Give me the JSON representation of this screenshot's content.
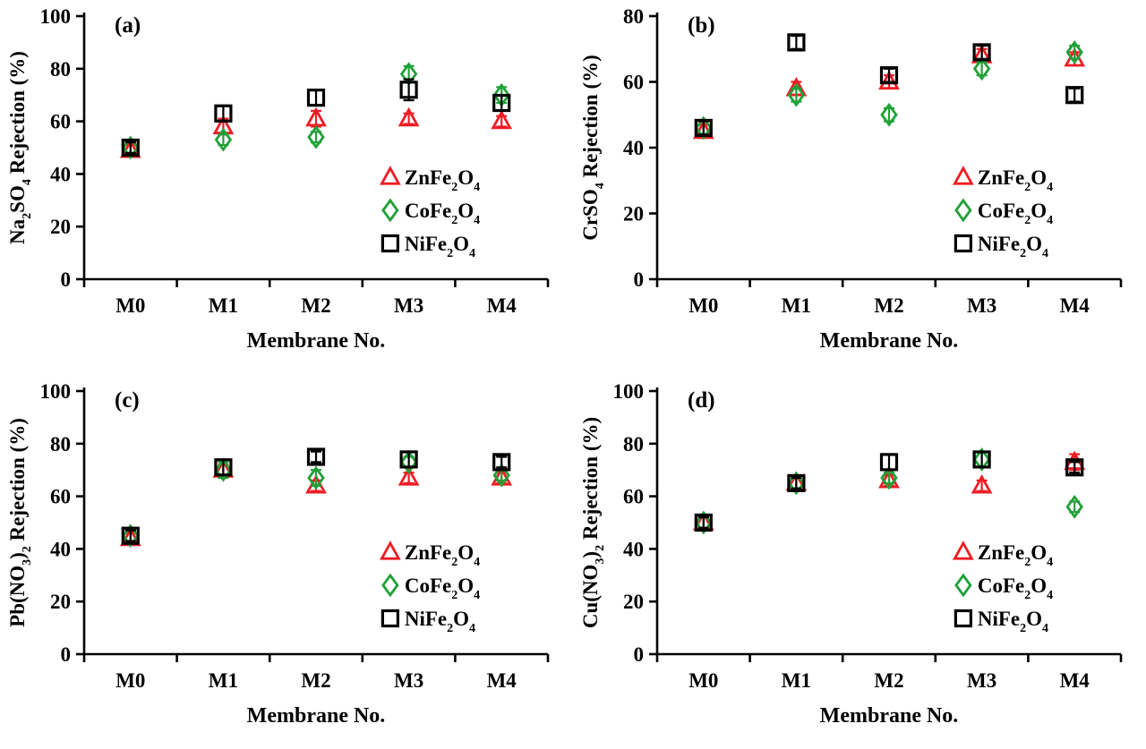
{
  "figure": {
    "background": "#ffffff",
    "axis_color": "#000000",
    "legend": {
      "position": "lower right inside",
      "items": [
        {
          "name": "ZnFe2O4",
          "text": "ZnFe2O4",
          "parts": [
            [
              "ZnFe",
              0
            ],
            [
              "2",
              1
            ],
            [
              "O",
              0
            ],
            [
              "4",
              1
            ]
          ],
          "marker": "triangle",
          "color": "#ed1c24"
        },
        {
          "name": "CoFe2O4",
          "text": "CoFe2O4",
          "parts": [
            [
              "CoFe",
              0
            ],
            [
              "2",
              1
            ],
            [
              "O",
              0
            ],
            [
              "4",
              1
            ]
          ],
          "marker": "diamond",
          "color": "#21a038"
        },
        {
          "name": "NiFe2O4",
          "text": "NiFe2O4",
          "parts": [
            [
              "NiFe",
              0
            ],
            [
              "2",
              1
            ],
            [
              "O",
              0
            ],
            [
              "4",
              1
            ]
          ],
          "marker": "square",
          "color": "#000000"
        }
      ]
    }
  },
  "chart_data": [
    {
      "type": "scatter",
      "panel_label": "(a)",
      "xlabel": "Membrane No.",
      "ylabel": "Na2SO4 Rejection (%)",
      "ylabel_parts": [
        [
          "Na",
          0
        ],
        [
          "2",
          1
        ],
        [
          "SO",
          0
        ],
        [
          "4",
          1
        ],
        [
          " Rejection (%)",
          0
        ]
      ],
      "categories": [
        "M0",
        "M1",
        "M2",
        "M3",
        "M4"
      ],
      "ylim": [
        0,
        100
      ],
      "yticks": [
        0,
        20,
        40,
        60,
        80,
        100
      ],
      "grid": false,
      "series": [
        {
          "name": "ZnFe2O4",
          "marker": "triangle",
          "color": "#ed1c24",
          "values": [
            49,
            58,
            61,
            61,
            60
          ],
          "errors": [
            2,
            3,
            3,
            2,
            2
          ]
        },
        {
          "name": "CoFe2O4",
          "marker": "diamond",
          "color": "#21a038",
          "values": [
            50,
            53,
            54,
            78,
            70
          ],
          "errors": [
            2,
            2,
            2,
            3,
            3
          ]
        },
        {
          "name": "NiFe2O4",
          "marker": "square",
          "color": "#000000",
          "values": [
            50,
            63,
            69,
            72,
            67
          ],
          "errors": [
            2,
            3,
            3,
            4,
            3
          ]
        }
      ]
    },
    {
      "type": "scatter",
      "panel_label": "(b)",
      "xlabel": "Membrane No.",
      "ylabel": "CrSO4 Rejection (%)",
      "ylabel_parts": [
        [
          "CrSO",
          0
        ],
        [
          "4",
          1
        ],
        [
          " Rejection (%)",
          0
        ]
      ],
      "categories": [
        "M0",
        "M1",
        "M2",
        "M3",
        "M4"
      ],
      "ylim": [
        0,
        80
      ],
      "yticks": [
        0,
        20,
        40,
        60,
        80
      ],
      "grid": false,
      "series": [
        {
          "name": "ZnFe2O4",
          "marker": "triangle",
          "color": "#ed1c24",
          "values": [
            45,
            58,
            60,
            68,
            67
          ],
          "errors": [
            2,
            2,
            2,
            2,
            2
          ]
        },
        {
          "name": "CoFe2O4",
          "marker": "diamond",
          "color": "#21a038",
          "values": [
            46,
            56,
            50,
            64,
            69
          ],
          "errors": [
            2,
            2,
            2,
            2,
            2
          ]
        },
        {
          "name": "NiFe2O4",
          "marker": "square",
          "color": "#000000",
          "values": [
            46,
            72,
            62,
            69,
            56
          ],
          "errors": [
            2,
            2,
            2,
            2,
            2
          ]
        }
      ]
    },
    {
      "type": "scatter",
      "panel_label": "(c)",
      "xlabel": "Membrane No.",
      "ylabel": "Pb(NO3)2 Rejection (%)",
      "ylabel_parts": [
        [
          "Pb(NO",
          0
        ],
        [
          "3",
          1
        ],
        [
          ")",
          0
        ],
        [
          "2",
          1
        ],
        [
          " Rejection (%)",
          0
        ]
      ],
      "categories": [
        "M0",
        "M1",
        "M2",
        "M3",
        "M4"
      ],
      "ylim": [
        0,
        100
      ],
      "yticks": [
        0,
        20,
        40,
        60,
        80,
        100
      ],
      "grid": false,
      "series": [
        {
          "name": "ZnFe2O4",
          "marker": "triangle",
          "color": "#ed1c24",
          "values": [
            44,
            70,
            64,
            67,
            67
          ],
          "errors": [
            2,
            2,
            2,
            2,
            2
          ]
        },
        {
          "name": "CoFe2O4",
          "marker": "diamond",
          "color": "#21a038",
          "values": [
            45,
            70,
            67,
            73,
            68
          ],
          "errors": [
            2,
            3,
            3,
            2,
            2
          ]
        },
        {
          "name": "NiFe2O4",
          "marker": "square",
          "color": "#000000",
          "values": [
            45,
            71,
            75,
            74,
            73
          ],
          "errors": [
            2,
            3,
            2,
            3,
            2
          ]
        }
      ]
    },
    {
      "type": "scatter",
      "panel_label": "(d)",
      "xlabel": "Membrane No.",
      "ylabel": "Cu(NO3)2 Rejection (%)",
      "ylabel_parts": [
        [
          "Cu(NO",
          0
        ],
        [
          "3",
          1
        ],
        [
          ")",
          0
        ],
        [
          "2",
          1
        ],
        [
          " Rejection (%)",
          0
        ]
      ],
      "categories": [
        "M0",
        "M1",
        "M2",
        "M3",
        "M4"
      ],
      "ylim": [
        0,
        100
      ],
      "yticks": [
        0,
        20,
        40,
        60,
        80,
        100
      ],
      "grid": false,
      "series": [
        {
          "name": "ZnFe2O4",
          "marker": "triangle",
          "color": "#ed1c24",
          "values": [
            50,
            65,
            66,
            64,
            73
          ],
          "errors": [
            2,
            2,
            2,
            2,
            3
          ]
        },
        {
          "name": "CoFe2O4",
          "marker": "diamond",
          "color": "#21a038",
          "values": [
            50,
            65,
            67,
            74,
            56
          ],
          "errors": [
            2,
            2,
            2,
            3,
            2
          ]
        },
        {
          "name": "NiFe2O4",
          "marker": "square",
          "color": "#000000",
          "values": [
            50,
            65,
            73,
            74,
            71
          ],
          "errors": [
            2,
            2,
            3,
            3,
            2
          ]
        }
      ]
    }
  ]
}
